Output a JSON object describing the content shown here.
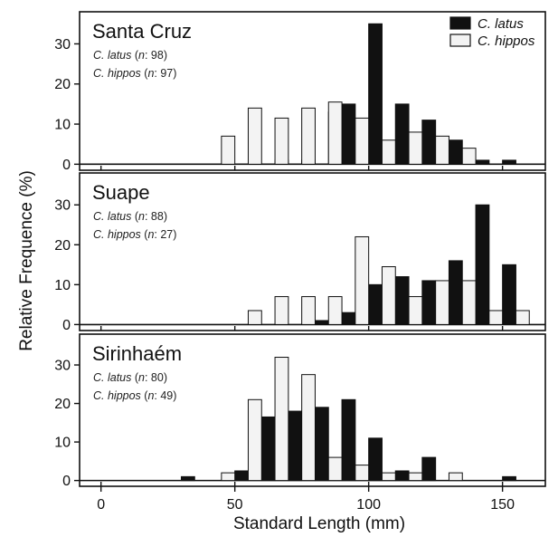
{
  "chart_data": {
    "type": "bar",
    "xlabel": "Standard Length (mm)",
    "ylabel": "Relative Frequence (%)",
    "xlim": [
      -8,
      166
    ],
    "ylim": [
      -1.5,
      38
    ],
    "xticks": [
      "0",
      "50",
      "100",
      "150"
    ],
    "yticks": [
      "0",
      "10",
      "20",
      "30"
    ],
    "bin_width": 5,
    "legend": {
      "position": "top-right",
      "entries": [
        {
          "label": "C. latus",
          "color": "#111111"
        },
        {
          "label": "C. hippos",
          "color": "#f3f3f3"
        }
      ]
    },
    "panels": [
      {
        "site": "Santa Cruz",
        "notes": [
          {
            "species": "C. latus",
            "n_label": "n",
            "n_value": ": 98)"
          },
          {
            "species": "C. hippos",
            "n_label": "n",
            "n_value": ": 97)"
          }
        ],
        "series": [
          {
            "name": "C. latus",
            "bins": [
              55,
              60,
              65,
              70,
              75,
              80,
              85,
              90,
              95,
              100,
              105,
              110,
              115,
              120,
              125,
              130,
              135,
              140,
              145,
              150,
              155
            ],
            "values": [
              0,
              0,
              1,
              0,
              1,
              0,
              13,
              15,
              0,
              35,
              0,
              15,
              0,
              11,
              0,
              6,
              0,
              1,
              0,
              1,
              0
            ]
          },
          {
            "name": "C. hippos",
            "bins": [
              45,
              50,
              55,
              60,
              65,
              70,
              75,
              80,
              85,
              90,
              95,
              100,
              105,
              110,
              115,
              120,
              125,
              130,
              135,
              140,
              145,
              150,
              155
            ],
            "values": [
              7,
              0,
              14,
              0,
              11.5,
              0,
              14,
              0,
              15.5,
              0,
              11.5,
              0,
              6,
              0,
              8,
              0,
              7,
              0,
              4,
              0,
              0,
              0,
              0
            ]
          }
        ]
      },
      {
        "site": "Suape",
        "notes": [
          {
            "species": "C. latus",
            "n_label": "n",
            "n_value": ": 88)"
          },
          {
            "species": "C. hippos",
            "n_label": "n",
            "n_value": ": 27)"
          }
        ],
        "series": [
          {
            "name": "C. latus",
            "bins": [
              75,
              80,
              85,
              90,
              95,
              100,
              105,
              110,
              115,
              120,
              125,
              130,
              135,
              140,
              145,
              150,
              155
            ],
            "values": [
              0,
              1,
              0,
              3,
              0,
              10,
              0,
              12,
              0,
              11,
              0,
              16,
              0,
              30,
              0,
              15,
              0
            ]
          },
          {
            "name": "C. hippos",
            "bins": [
              55,
              60,
              65,
              70,
              75,
              80,
              85,
              90,
              95,
              100,
              105,
              110,
              115,
              120,
              125,
              130,
              135,
              140,
              145,
              150,
              155
            ],
            "values": [
              3.5,
              0,
              7,
              0,
              7,
              0,
              7,
              0,
              22,
              0,
              14.5,
              0,
              7,
              0,
              11,
              0,
              11,
              0,
              3.5,
              0,
              3.5
            ]
          }
        ]
      },
      {
        "site": "Sirinhaém",
        "notes": [
          {
            "species": "C. latus",
            "n_label": "n",
            "n_value": ": 80)"
          },
          {
            "species": "C. hippos",
            "n_label": "n",
            "n_value": ": 49)"
          }
        ],
        "series": [
          {
            "name": "C. latus",
            "bins": [
              30,
              50,
              55,
              60,
              65,
              70,
              75,
              80,
              85,
              90,
              95,
              100,
              105,
              110,
              115,
              120,
              125,
              130,
              135,
              140,
              145,
              150
            ],
            "values": [
              1,
              2.5,
              0,
              16.5,
              0,
              18,
              0,
              19,
              0,
              21,
              0,
              11,
              0,
              2.5,
              0,
              6,
              0,
              0,
              0,
              0,
              0,
              1
            ]
          },
          {
            "name": "C. hippos",
            "bins": [
              45,
              55,
              60,
              65,
              70,
              75,
              80,
              85,
              90,
              95,
              100,
              105,
              110,
              115,
              120,
              125,
              130,
              135,
              140
            ],
            "values": [
              2,
              21,
              0,
              32,
              0,
              27.5,
              0,
              6,
              0,
              4,
              0,
              2,
              0,
              2,
              0,
              0,
              2,
              0,
              0
            ]
          }
        ]
      }
    ]
  }
}
